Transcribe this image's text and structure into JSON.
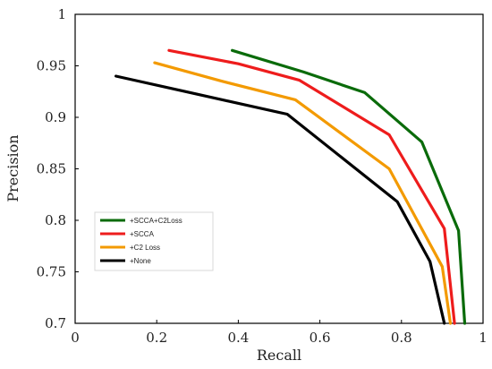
{
  "chart_data": {
    "type": "line",
    "title": "",
    "xlabel": "Recall",
    "ylabel": "Precision",
    "xlim": [
      0,
      1
    ],
    "ylim": [
      0.7,
      1
    ],
    "xticks": [
      "0",
      "0.2",
      "0.4",
      "0.6",
      "0.8",
      "1"
    ],
    "yticks": [
      "0.7",
      "0.75",
      "0.8",
      "0.85",
      "0.9",
      "0.95",
      "1"
    ],
    "grid": false,
    "legend_position": "left",
    "series": [
      {
        "name": "+SCCA+C2Loss",
        "color": "#0a6b0a",
        "points": [
          [
            0.385,
            0.965
          ],
          [
            0.56,
            0.944
          ],
          [
            0.71,
            0.924
          ],
          [
            0.85,
            0.876
          ],
          [
            0.94,
            0.79
          ],
          [
            0.955,
            0.7
          ]
        ]
      },
      {
        "name": "+SCCA",
        "color": "#ee1c1c",
        "points": [
          [
            0.23,
            0.965
          ],
          [
            0.4,
            0.952
          ],
          [
            0.55,
            0.936
          ],
          [
            0.77,
            0.883
          ],
          [
            0.905,
            0.792
          ],
          [
            0.93,
            0.7
          ]
        ]
      },
      {
        "name": "+C2 Loss",
        "color": "#f39a00",
        "points": [
          [
            0.195,
            0.953
          ],
          [
            0.36,
            0.935
          ],
          [
            0.54,
            0.917
          ],
          [
            0.77,
            0.85
          ],
          [
            0.9,
            0.755
          ],
          [
            0.92,
            0.7
          ]
        ]
      },
      {
        "name": "+None",
        "color": "#000000",
        "points": [
          [
            0.1,
            0.94
          ],
          [
            0.27,
            0.925
          ],
          [
            0.52,
            0.903
          ],
          [
            0.79,
            0.818
          ],
          [
            0.87,
            0.76
          ],
          [
            0.905,
            0.7
          ]
        ]
      }
    ]
  }
}
